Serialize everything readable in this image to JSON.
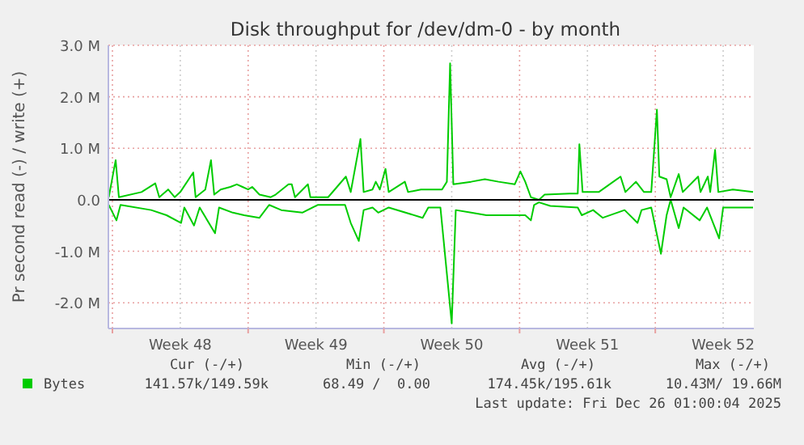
{
  "chart_data": {
    "type": "line",
    "title": "Disk throughput for /dev/dm-0 - by month",
    "ylabel": "Pr second read (-) / write (+)",
    "xlim": [
      "2025-11-22T19:00",
      "2025-12-26T02:00"
    ],
    "xticks": [
      {
        "value": "2025-11-23",
        "label": null
      },
      {
        "value": "2025-11-26T12:00",
        "label": "Week 48"
      },
      {
        "value": "2025-11-30",
        "label": null
      },
      {
        "value": "2025-12-03T12:00",
        "label": "Week 49"
      },
      {
        "value": "2025-12-07",
        "label": null
      },
      {
        "value": "2025-12-10T12:00",
        "label": "Week 50"
      },
      {
        "value": "2025-12-14",
        "label": null
      },
      {
        "value": "2025-12-17T12:00",
        "label": "Week 51"
      },
      {
        "value": "2025-12-21",
        "label": null
      },
      {
        "value": "2025-12-24T12:00",
        "label": "Week 52"
      }
    ],
    "ylim": [
      -2.5,
      3.0
    ],
    "yticks": [
      {
        "value": -2,
        "label": "-2.0 M"
      },
      {
        "value": -1,
        "label": "-1.0 M"
      },
      {
        "value": 0,
        "label": "0.0"
      },
      {
        "value": 1,
        "label": "1.0 M"
      },
      {
        "value": 2,
        "label": "2.0 M"
      },
      {
        "value": 3,
        "label": "3.0 M"
      }
    ],
    "grid": true,
    "legend": "bottom",
    "line_style": "solid",
    "ref_lines": [
      {
        "axis": "y",
        "value": 0,
        "label": null,
        "color": "#000000"
      }
    ],
    "series": [
      {
        "name": "Bytes",
        "color": "#00cc00",
        "x": [
          "2025-11-22T19:30",
          "2025-11-23T04:00",
          "2025-11-23T08:00",
          "2025-11-24T12:00",
          "2025-11-25T05:00",
          "2025-11-25T10:00",
          "2025-11-25T21:00",
          "2025-11-26T05:00",
          "2025-11-26T12:00",
          "2025-11-27T04:00",
          "2025-11-27T07:00",
          "2025-11-27T19:00",
          "2025-11-28T02:00",
          "2025-11-28T06:00",
          "2025-11-28T14:00",
          "2025-11-29T02:00",
          "2025-11-29T10:00",
          "2025-11-29T17:00",
          "2025-11-30T00:00",
          "2025-11-30T05:00",
          "2025-11-30T14:00",
          "2025-12-01T04:00",
          "2025-12-01T10:00",
          "2025-12-02T02:00",
          "2025-12-02T06:00",
          "2025-12-02T10:00",
          "2025-12-03T02:00",
          "2025-12-03T05:00",
          "2025-12-03T22:00",
          "2025-12-04T03:00",
          "2025-12-05T01:00",
          "2025-12-05T07:00",
          "2025-12-05T19:00",
          "2025-12-05T23:00",
          "2025-12-06T10:00",
          "2025-12-06T14:00",
          "2025-12-06T19:00",
          "2025-12-07T02:00",
          "2025-12-07T06:00",
          "2025-12-08T02:00",
          "2025-12-08T06:00",
          "2025-12-08T22:00",
          "2025-12-10T00:00",
          "2025-12-10T06:00",
          "2025-12-10T10:00",
          "2025-12-10T14:00",
          "2025-12-11T12:00",
          "2025-12-12T05:00",
          "2025-12-12T22:00",
          "2025-12-13T18:00",
          "2025-12-14T01:00",
          "2025-12-14T07:00",
          "2025-12-14T14:00",
          "2025-12-15T00:00",
          "2025-12-15T07:00",
          "2025-12-16T14:00",
          "2025-12-17T00:00",
          "2025-12-17T02:00",
          "2025-12-17T06:00",
          "2025-12-18T02:00",
          "2025-12-19T05:00",
          "2025-12-19T11:00",
          "2025-12-20T00:00",
          "2025-12-20T10:00",
          "2025-12-20T19:00",
          "2025-12-21T02:00",
          "2025-12-21T05:00",
          "2025-12-21T14:00",
          "2025-12-21T19:00",
          "2025-12-22T05:00",
          "2025-12-22T10:00",
          "2025-12-23T05:00",
          "2025-12-23T08:00",
          "2025-12-23T17:00",
          "2025-12-23T20:00",
          "2025-12-24T02:00",
          "2025-12-24T06:00",
          "2025-12-25T00:00",
          "2025-12-26T01:00"
        ],
        "values": [
          0.05,
          0.77,
          0.05,
          0.15,
          0.32,
          0.05,
          0.2,
          0.05,
          0.15,
          0.53,
          0.05,
          0.2,
          0.77,
          0.1,
          0.2,
          0.25,
          0.3,
          0.25,
          0.2,
          0.25,
          0.1,
          0.05,
          0.1,
          0.3,
          0.3,
          0.05,
          0.3,
          0.05,
          0.05,
          0.05,
          0.45,
          0.15,
          1.18,
          0.15,
          0.2,
          0.35,
          0.2,
          0.6,
          0.15,
          0.35,
          0.15,
          0.2,
          0.2,
          0.35,
          2.65,
          0.3,
          0.35,
          0.4,
          0.35,
          0.3,
          0.55,
          0.35,
          0.05,
          0.0,
          0.1,
          0.12,
          0.12,
          1.08,
          0.15,
          0.15,
          0.45,
          0.15,
          0.35,
          0.15,
          0.15,
          1.75,
          0.45,
          0.4,
          0.05,
          0.5,
          0.15,
          0.45,
          0.15,
          0.45,
          0.15,
          0.97,
          0.15,
          0.2,
          0.15
        ]
      },
      {
        "color": "#00cc00",
        "x": [
          "2025-11-22T19:30",
          "2025-11-23T05:00",
          "2025-11-23T10:00",
          "2025-11-25T00:00",
          "2025-11-25T19:00",
          "2025-11-26T13:00",
          "2025-11-26T17:00",
          "2025-11-27T05:00",
          "2025-11-27T12:00",
          "2025-11-28T07:00",
          "2025-11-28T12:00",
          "2025-11-29T05:00",
          "2025-11-29T19:00",
          "2025-11-30T14:00",
          "2025-12-01T02:00",
          "2025-12-01T17:00",
          "2025-12-02T19:00",
          "2025-12-03T14:00",
          "2025-12-05T00:00",
          "2025-12-05T07:00",
          "2025-12-05T17:00",
          "2025-12-05T23:00",
          "2025-12-06T10:00",
          "2025-12-06T17:00",
          "2025-12-07T06:00",
          "2025-12-09T00:00",
          "2025-12-09T07:00",
          "2025-12-09T22:00",
          "2025-12-10T12:00",
          "2025-12-10T17:00",
          "2025-12-11T12:00",
          "2025-12-12T07:00",
          "2025-12-13T10:00",
          "2025-12-14T07:00",
          "2025-12-14T14:00",
          "2025-12-14T18:00",
          "2025-12-15T00:00",
          "2025-12-15T14:00",
          "2025-12-17T00:00",
          "2025-12-17T05:00",
          "2025-12-17T19:00",
          "2025-12-18T07:00",
          "2025-12-19T10:00",
          "2025-12-20T02:00",
          "2025-12-20T07:00",
          "2025-12-20T19:00",
          "2025-12-21T07:00",
          "2025-12-21T14:00",
          "2025-12-21T19:00",
          "2025-12-22T05:00",
          "2025-12-22T11:00",
          "2025-12-23T07:00",
          "2025-12-23T16:00",
          "2025-12-24T07:00",
          "2025-12-24T12:00",
          "2025-12-26T01:00"
        ],
        "values": [
          -0.1,
          -0.4,
          -0.1,
          -0.2,
          -0.3,
          -0.45,
          -0.15,
          -0.5,
          -0.15,
          -0.65,
          -0.15,
          -0.25,
          -0.3,
          -0.35,
          -0.1,
          -0.2,
          -0.25,
          -0.1,
          -0.1,
          -0.45,
          -0.8,
          -0.2,
          -0.15,
          -0.25,
          -0.15,
          -0.35,
          -0.15,
          -0.15,
          -2.4,
          -0.2,
          -0.25,
          -0.3,
          -0.3,
          -0.3,
          -0.4,
          -0.1,
          -0.05,
          -0.12,
          -0.15,
          -0.3,
          -0.2,
          -0.35,
          -0.2,
          -0.45,
          -0.2,
          -0.15,
          -1.05,
          -0.3,
          0.0,
          -0.55,
          -0.15,
          -0.4,
          -0.15,
          -0.75,
          -0.15,
          -0.15
        ]
      }
    ],
    "annotations": [
      "Cur (-/+)",
      "Min (-/+)",
      "Avg (-/+)",
      "Max (-/+)",
      "141.57k/149.59k",
      "68.49 /  0.00",
      "174.45k/195.61k",
      "10.43M/ 19.66M",
      "Last update: Fri Dec 26 01:00:04 2025"
    ]
  }
}
